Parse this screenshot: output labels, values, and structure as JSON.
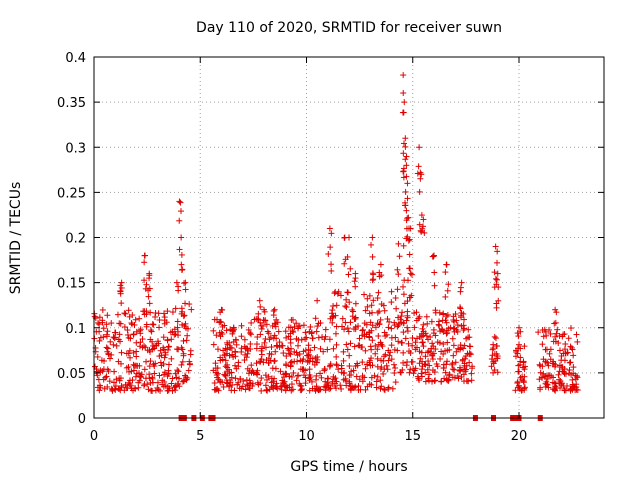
{
  "chart_data": {
    "type": "scatter",
    "title": "Day 110 of 2020, SRMTID for receiver suwn",
    "xlabel": "GPS time / hours",
    "ylabel": "SRMTID / TECUs",
    "xlim": [
      0,
      24
    ],
    "ylim": [
      0,
      0.4
    ],
    "x_ticks": [
      0,
      5,
      10,
      15,
      20
    ],
    "x_tick_labels": [
      "0",
      "5",
      "10",
      "15",
      "20"
    ],
    "y_ticks": [
      0,
      0.05,
      0.1,
      0.15,
      0.2,
      0.25,
      0.3,
      0.35,
      0.4
    ],
    "y_tick_labels": [
      "0",
      "0.05",
      "0.1",
      "0.15",
      "0.2",
      "0.25",
      "0.3",
      "0.35",
      "0.4"
    ],
    "grid": true,
    "marker": "plus",
    "color": "#e00000",
    "series": [
      {
        "name": "SRMTID",
        "segments": [
          {
            "x_start": 0.0,
            "x_end": 4.05,
            "typical": [
              0.03,
              0.12
            ],
            "peaks": [
              [
                1.3,
                0.15
              ],
              [
                2.4,
                0.18
              ],
              [
                2.6,
                0.16
              ],
              [
                3.9,
                0.15
              ],
              [
                4.02,
                0.24
              ],
              [
                4.1,
                0.2
              ]
            ]
          },
          {
            "x_start": 4.1,
            "x_end": 4.6,
            "typical": [
              0.04,
              0.14
            ],
            "peaks": [
              [
                4.3,
                0.15
              ]
            ]
          },
          {
            "x_start": 5.6,
            "x_end": 11.0,
            "typical": [
              0.03,
              0.11
            ],
            "peaks": [
              [
                6.0,
                0.12
              ],
              [
                7.8,
                0.13
              ],
              [
                8.0,
                0.12
              ],
              [
                8.5,
                0.12
              ],
              [
                10.5,
                0.13
              ]
            ]
          },
          {
            "x_start": 11.0,
            "x_end": 14.2,
            "typical": [
              0.03,
              0.14
            ],
            "peaks": [
              [
                11.1,
                0.21
              ],
              [
                11.8,
                0.2
              ],
              [
                12.0,
                0.2
              ],
              [
                12.3,
                0.16
              ],
              [
                13.1,
                0.2
              ],
              [
                13.5,
                0.17
              ]
            ]
          },
          {
            "x_start": 14.2,
            "x_end": 15.0,
            "typical": [
              0.05,
              0.2
            ],
            "peaks": [
              [
                14.55,
                0.38
              ],
              [
                14.6,
                0.35
              ],
              [
                14.65,
                0.31
              ],
              [
                14.7,
                0.28
              ],
              [
                14.75,
                0.26
              ],
              [
                14.9,
                0.21
              ]
            ]
          },
          {
            "x_start": 15.0,
            "x_end": 17.8,
            "typical": [
              0.04,
              0.12
            ],
            "peaks": [
              [
                15.3,
                0.3
              ],
              [
                15.4,
                0.27
              ],
              [
                15.5,
                0.22
              ],
              [
                16.0,
                0.18
              ],
              [
                16.6,
                0.17
              ],
              [
                17.3,
                0.15
              ]
            ]
          },
          {
            "x_start": 18.7,
            "x_end": 19.0,
            "typical": [
              0.05,
              0.09
            ],
            "peaks": [
              [
                18.9,
                0.19
              ],
              [
                19.0,
                0.16
              ]
            ]
          },
          {
            "x_start": 19.8,
            "x_end": 20.3,
            "typical": [
              0.03,
              0.08
            ],
            "peaks": [
              [
                20.0,
                0.1
              ]
            ]
          },
          {
            "x_start": 20.9,
            "x_end": 22.8,
            "typical": [
              0.03,
              0.1
            ],
            "peaks": [
              [
                21.7,
                0.12
              ]
            ]
          }
        ],
        "zero_values_x": [
          4.1,
          4.25,
          4.7,
          5.1,
          5.5,
          5.6,
          17.95,
          18.8,
          19.7,
          19.85,
          20.0,
          21.0
        ]
      }
    ]
  }
}
